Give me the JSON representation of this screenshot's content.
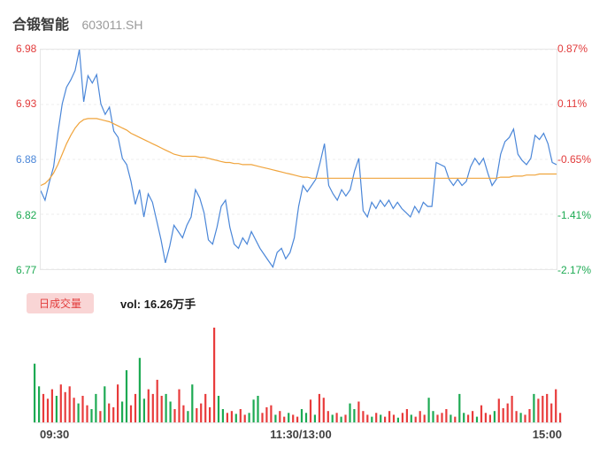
{
  "header": {
    "title": "合锻智能",
    "code": "603011.SH"
  },
  "price_axis": {
    "left_labels": [
      "6.98",
      "6.93",
      "6.88",
      "6.82",
      "6.77"
    ],
    "left_colors": [
      "#e23b3b",
      "#e23b3b",
      "#4a86d8",
      "#1daa53",
      "#1daa53"
    ],
    "right_labels": [
      "0.87%",
      "0.11%",
      "-0.65%",
      "-1.41%",
      "-2.17%"
    ],
    "right_colors": [
      "#e23b3b",
      "#e23b3b",
      "#e23b3b",
      "#1daa53",
      "#1daa53"
    ]
  },
  "volume_section": {
    "badge": "日成交量",
    "vol_label": "vol: 16.26万手"
  },
  "time_axis": {
    "labels": [
      "09:30",
      "11:30/13:00",
      "15:00"
    ]
  },
  "colors": {
    "up": "#e83b3b",
    "down": "#1daa53",
    "price_line": "#4a86d8",
    "avg_line": "#f0a43c",
    "grid": "#ececec",
    "badge_bg": "#f9d5d5",
    "badge_text": "#e23c3c"
  },
  "chart_data": {
    "type": "line",
    "title": "合锻智能 603011.SH 分时走势",
    "x_labels": [
      "09:30",
      "11:30/13:00",
      "15:00"
    ],
    "y_axis": {
      "min": 6.77,
      "max": 6.98,
      "ticks": [
        6.98,
        6.93,
        6.88,
        6.82,
        6.77
      ]
    },
    "pct_axis": [
      "0.87%",
      "0.11%",
      "-0.65%",
      "-1.41%",
      "-2.17%"
    ],
    "prev_close": 6.92,
    "volume_total": "16.26万手",
    "series": [
      {
        "name": "price",
        "values": [
          6.845,
          6.836,
          6.853,
          6.868,
          6.9,
          6.928,
          6.944,
          6.951,
          6.96,
          6.98,
          6.93,
          6.955,
          6.948,
          6.956,
          6.928,
          6.918,
          6.925,
          6.902,
          6.896,
          6.876,
          6.87,
          6.854,
          6.832,
          6.846,
          6.82,
          6.842,
          6.834,
          6.816,
          6.798,
          6.776,
          6.792,
          6.812,
          6.806,
          6.8,
          6.812,
          6.82,
          6.846,
          6.838,
          6.824,
          6.798,
          6.794,
          6.81,
          6.83,
          6.836,
          6.81,
          6.794,
          6.79,
          6.8,
          6.794,
          6.806,
          6.798,
          6.79,
          6.784,
          6.778,
          6.772,
          6.786,
          6.79,
          6.78,
          6.786,
          6.8,
          6.83,
          6.85,
          6.844,
          6.85,
          6.856,
          6.872,
          6.89,
          6.85,
          6.842,
          6.836,
          6.846,
          6.84,
          6.846,
          6.864,
          6.876,
          6.826,
          6.82,
          6.834,
          6.828,
          6.836,
          6.83,
          6.836,
          6.828,
          6.834,
          6.828,
          6.824,
          6.82,
          6.83,
          6.824,
          6.834,
          6.83,
          6.83,
          6.872,
          6.87,
          6.868,
          6.856,
          6.85,
          6.856,
          6.85,
          6.854,
          6.868,
          6.876,
          6.87,
          6.876,
          6.862,
          6.85,
          6.856,
          6.88,
          6.892,
          6.896,
          6.904,
          6.88,
          6.874,
          6.87,
          6.876,
          6.898,
          6.894,
          6.9,
          6.89,
          6.872,
          6.87
        ]
      },
      {
        "name": "avg",
        "values": [
          6.85,
          6.852,
          6.856,
          6.862,
          6.87,
          6.88,
          6.89,
          6.898,
          6.905,
          6.91,
          6.913,
          6.914,
          6.914,
          6.914,
          6.913,
          6.912,
          6.911,
          6.909,
          6.907,
          6.905,
          6.903,
          6.9,
          6.898,
          6.896,
          6.894,
          6.892,
          6.89,
          6.888,
          6.886,
          6.884,
          6.882,
          6.88,
          6.879,
          6.878,
          6.878,
          6.878,
          6.878,
          6.877,
          6.877,
          6.876,
          6.875,
          6.874,
          6.873,
          6.872,
          6.872,
          6.871,
          6.871,
          6.87,
          6.87,
          6.87,
          6.869,
          6.868,
          6.867,
          6.866,
          6.865,
          6.864,
          6.863,
          6.862,
          6.861,
          6.86,
          6.859,
          6.858,
          6.858,
          6.857,
          6.857,
          6.857,
          6.857,
          6.857,
          6.857,
          6.857,
          6.857,
          6.857,
          6.857,
          6.857,
          6.857,
          6.857,
          6.857,
          6.857,
          6.857,
          6.857,
          6.857,
          6.857,
          6.857,
          6.857,
          6.857,
          6.857,
          6.857,
          6.857,
          6.857,
          6.857,
          6.857,
          6.857,
          6.857,
          6.857,
          6.857,
          6.857,
          6.857,
          6.857,
          6.857,
          6.857,
          6.857,
          6.857,
          6.857,
          6.857,
          6.857,
          6.857,
          6.857,
          6.858,
          6.858,
          6.858,
          6.859,
          6.859,
          6.859,
          6.86,
          6.86,
          6.86,
          6.861,
          6.861,
          6.861,
          6.861,
          6.861
        ]
      }
    ],
    "volume": {
      "values": [
        62,
        38,
        30,
        25,
        35,
        28,
        40,
        32,
        38,
        26,
        20,
        28,
        18,
        14,
        30,
        12,
        38,
        20,
        16,
        40,
        22,
        55,
        18,
        30,
        68,
        25,
        35,
        30,
        45,
        28,
        30,
        22,
        14,
        35,
        18,
        12,
        40,
        15,
        20,
        30,
        16,
        100,
        28,
        14,
        10,
        12,
        9,
        14,
        8,
        10,
        24,
        28,
        10,
        16,
        18,
        8,
        12,
        6,
        10,
        8,
        6,
        14,
        10,
        24,
        8,
        30,
        26,
        12,
        8,
        10,
        6,
        8,
        20,
        14,
        22,
        12,
        8,
        6,
        10,
        8,
        6,
        12,
        8,
        5,
        10,
        14,
        8,
        6,
        12,
        8,
        26,
        12,
        8,
        10,
        14,
        8,
        6,
        30,
        10,
        8,
        12,
        6,
        18,
        10,
        8,
        12,
        25,
        15,
        20,
        28,
        12,
        10,
        8,
        14,
        30,
        25,
        28,
        30,
        20,
        35,
        10
      ],
      "colors": [
        "g",
        "g",
        "r",
        "r",
        "r",
        "g",
        "r",
        "r",
        "r",
        "r",
        "g",
        "r",
        "r",
        "g",
        "g",
        "r",
        "g",
        "r",
        "r",
        "r",
        "g",
        "g",
        "r",
        "r",
        "g",
        "g",
        "r",
        "r",
        "r",
        "r",
        "g",
        "g",
        "r",
        "r",
        "r",
        "g",
        "g",
        "r",
        "r",
        "r",
        "r",
        "r",
        "g",
        "g",
        "r",
        "r",
        "g",
        "r",
        "r",
        "g",
        "g",
        "g",
        "r",
        "r",
        "r",
        "g",
        "r",
        "r",
        "g",
        "r",
        "r",
        "g",
        "g",
        "r",
        "g",
        "r",
        "r",
        "r",
        "g",
        "r",
        "g",
        "r",
        "g",
        "g",
        "r",
        "r",
        "r",
        "g",
        "r",
        "g",
        "r",
        "r",
        "r",
        "g",
        "r",
        "r",
        "g",
        "r",
        "r",
        "r",
        "g",
        "g",
        "r",
        "r",
        "r",
        "g",
        "r",
        "g",
        "g",
        "r",
        "r",
        "g",
        "r",
        "r",
        "r",
        "g",
        "r",
        "r",
        "r",
        "r",
        "r",
        "g",
        "r",
        "r",
        "g",
        "r",
        "r",
        "r",
        "r",
        "r",
        "r"
      ]
    }
  }
}
